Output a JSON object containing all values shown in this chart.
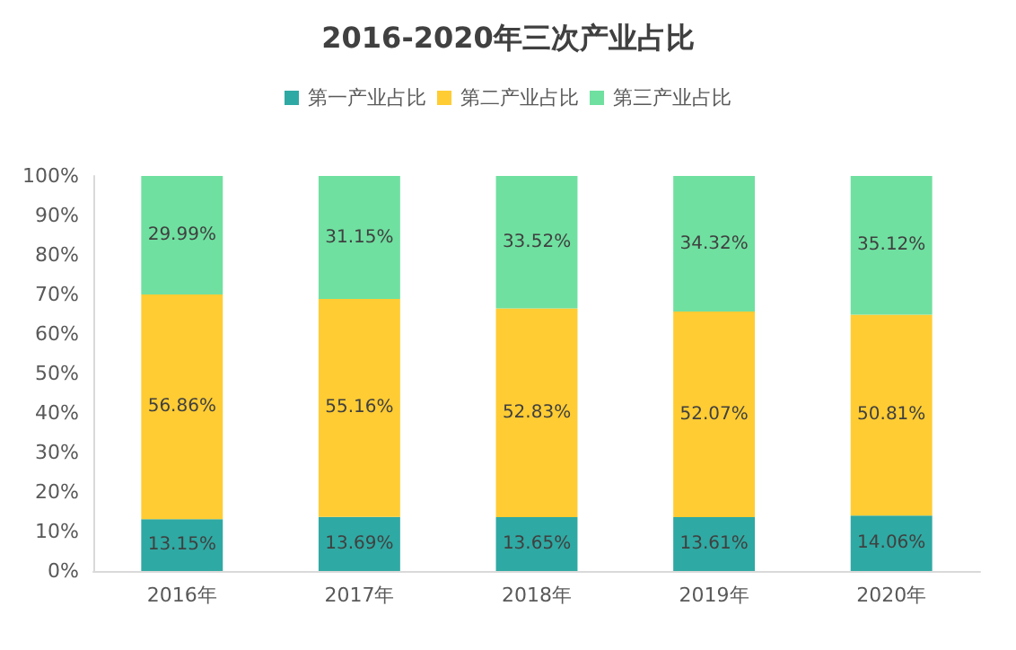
{
  "chart_data": {
    "type": "bar",
    "title": "2016-2020年三次产业占比",
    "stacked": true,
    "legend": "top",
    "categories": [
      "2016年",
      "2017年",
      "2018年",
      "2019年",
      "2020年"
    ],
    "series": [
      {
        "name": "第一产业占比",
        "color": "#2fa9a3",
        "values": [
          13.15,
          13.69,
          13.65,
          13.61,
          14.06
        ],
        "value_labels": [
          "13.15%",
          "13.69%",
          "13.65%",
          "13.61%",
          "14.06%"
        ]
      },
      {
        "name": "第二产业占比",
        "color": "#ffcc33",
        "values": [
          56.86,
          55.16,
          52.83,
          52.07,
          50.81
        ],
        "value_labels": [
          "56.86%",
          "55.16%",
          "52.83%",
          "52.07%",
          "50.81%"
        ]
      },
      {
        "name": "第三产业占比",
        "color": "#6fe0a0",
        "values": [
          29.99,
          31.15,
          33.52,
          34.32,
          35.12
        ],
        "value_labels": [
          "29.99%",
          "31.15%",
          "33.52%",
          "34.32%",
          "35.12%"
        ]
      }
    ],
    "ylim": [
      0,
      100
    ],
    "yticks": [
      {
        "value": 0,
        "label": "0%"
      },
      {
        "value": 10,
        "label": "10%"
      },
      {
        "value": 20,
        "label": "20%"
      },
      {
        "value": 30,
        "label": "30%"
      },
      {
        "value": 40,
        "label": "40%"
      },
      {
        "value": 50,
        "label": "50%"
      },
      {
        "value": 60,
        "label": "60%"
      },
      {
        "value": 70,
        "label": "70%"
      },
      {
        "value": 80,
        "label": "80%"
      },
      {
        "value": 90,
        "label": "90%"
      },
      {
        "value": 100,
        "label": "100%"
      }
    ],
    "grid": false
  }
}
